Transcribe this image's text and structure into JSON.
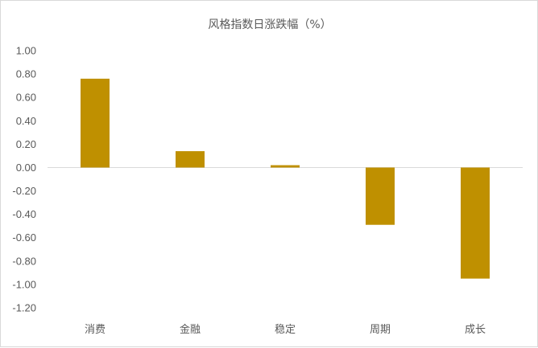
{
  "chart_data": {
    "type": "bar",
    "title": "风格指数日涨跌幅（%）",
    "categories": [
      "消费",
      "金融",
      "稳定",
      "周期",
      "成长"
    ],
    "values": [
      0.76,
      0.14,
      0.02,
      -0.49,
      -0.95
    ],
    "ylim": [
      -1.2,
      1.0
    ],
    "yticks": [
      "1.00",
      "0.80",
      "0.60",
      "0.40",
      "0.20",
      "0.00",
      "-0.20",
      "-0.40",
      "-0.60",
      "-0.80",
      "-1.00",
      "-1.20"
    ],
    "bar_color": "#bf9000",
    "grid": false,
    "legend": "none"
  }
}
